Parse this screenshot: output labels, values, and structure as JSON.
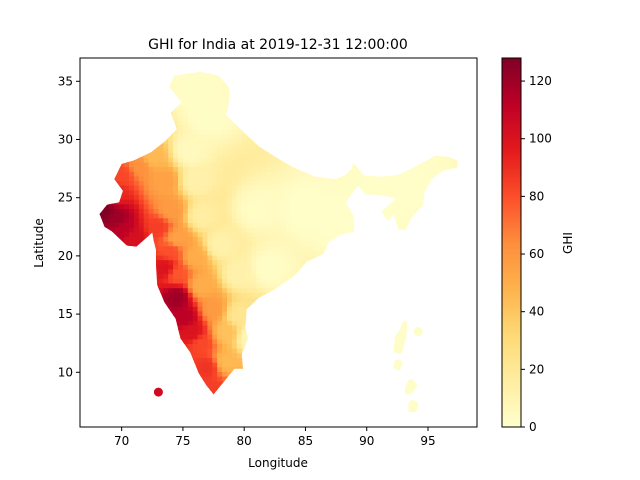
{
  "chart_data": {
    "type": "scatter",
    "title": "GHI for India at 2019-12-31 12:00:00",
    "xlabel": "Longitude",
    "ylabel": "Latitude",
    "xlim": [
      66.6,
      99.0
    ],
    "ylim": [
      5.3,
      37.0
    ],
    "x_ticks": [
      70,
      75,
      80,
      85,
      90,
      95
    ],
    "y_ticks": [
      10,
      15,
      20,
      25,
      30,
      35
    ],
    "grid": false,
    "colormap": "YlOrRd",
    "colorbar": {
      "label": "GHI",
      "range": [
        0,
        128
      ],
      "ticks": [
        0,
        20,
        40,
        60,
        80,
        100,
        120
      ]
    },
    "colormap_stops": [
      "#ffffcc",
      "#ffeda0",
      "#fed976",
      "#feb24c",
      "#fd8d3c",
      "#fc4e2a",
      "#e31a1c",
      "#bd0026",
      "#800026"
    ],
    "regions": [
      {
        "name": "mainland",
        "polygon": [
          [
            68.2,
            23.6
          ],
          [
            68.8,
            24.4
          ],
          [
            69.8,
            24.6
          ],
          [
            70.1,
            25.6
          ],
          [
            69.4,
            26.6
          ],
          [
            70.0,
            27.9
          ],
          [
            71.0,
            28.2
          ],
          [
            72.4,
            28.9
          ],
          [
            73.6,
            29.9
          ],
          [
            74.5,
            30.9
          ],
          [
            74.0,
            32.3
          ],
          [
            74.9,
            33.2
          ],
          [
            73.9,
            34.5
          ],
          [
            74.3,
            35.5
          ],
          [
            76.4,
            35.8
          ],
          [
            77.9,
            35.5
          ],
          [
            78.8,
            34.4
          ],
          [
            78.7,
            32.8
          ],
          [
            78.5,
            32.1
          ],
          [
            79.2,
            31.4
          ],
          [
            80.2,
            30.4
          ],
          [
            81.2,
            29.4
          ],
          [
            82.7,
            28.4
          ],
          [
            84.0,
            27.6
          ],
          [
            85.8,
            26.8
          ],
          [
            87.4,
            26.6
          ],
          [
            88.2,
            26.9
          ],
          [
            88.8,
            27.5
          ],
          [
            88.9,
            28.0
          ],
          [
            89.8,
            26.9
          ],
          [
            91.3,
            26.8
          ],
          [
            92.7,
            27.0
          ],
          [
            94.2,
            27.8
          ],
          [
            95.6,
            28.6
          ],
          [
            96.6,
            28.5
          ],
          [
            97.4,
            28.2
          ],
          [
            97.4,
            27.6
          ],
          [
            96.2,
            27.3
          ],
          [
            95.3,
            26.6
          ],
          [
            94.7,
            25.4
          ],
          [
            94.6,
            24.4
          ],
          [
            93.6,
            23.2
          ],
          [
            93.2,
            22.3
          ],
          [
            92.6,
            22.2
          ],
          [
            92.2,
            23.6
          ],
          [
            91.7,
            23.0
          ],
          [
            91.2,
            23.8
          ],
          [
            91.8,
            24.4
          ],
          [
            92.4,
            24.9
          ],
          [
            91.2,
            25.2
          ],
          [
            89.9,
            25.3
          ],
          [
            89.3,
            26.0
          ],
          [
            88.9,
            25.5
          ],
          [
            88.3,
            24.6
          ],
          [
            88.9,
            23.5
          ],
          [
            89.0,
            22.1
          ],
          [
            87.9,
            21.8
          ],
          [
            86.9,
            21.2
          ],
          [
            86.5,
            20.2
          ],
          [
            85.1,
            19.5
          ],
          [
            84.1,
            18.3
          ],
          [
            82.3,
            17.0
          ],
          [
            81.2,
            16.4
          ],
          [
            80.2,
            15.4
          ],
          [
            80.1,
            13.8
          ],
          [
            80.3,
            12.9
          ],
          [
            79.8,
            11.5
          ],
          [
            79.9,
            10.3
          ],
          [
            79.2,
            10.3
          ],
          [
            78.2,
            9.0
          ],
          [
            77.5,
            8.1
          ],
          [
            76.9,
            8.9
          ],
          [
            76.3,
            9.9
          ],
          [
            75.6,
            11.7
          ],
          [
            74.8,
            12.9
          ],
          [
            74.4,
            14.6
          ],
          [
            73.5,
            16.0
          ],
          [
            72.9,
            17.5
          ],
          [
            72.8,
            19.2
          ],
          [
            72.8,
            20.5
          ],
          [
            72.6,
            21.4
          ],
          [
            72.5,
            22.0
          ],
          [
            71.2,
            20.8
          ],
          [
            70.4,
            20.9
          ],
          [
            69.2,
            22.1
          ],
          [
            68.6,
            22.5
          ]
        ]
      },
      {
        "name": "andaman-1",
        "polygon": [
          [
            92.9,
            13.6
          ],
          [
            93.1,
            14.2
          ],
          [
            93.0,
            12.9
          ],
          [
            92.7,
            11.8
          ],
          [
            92.4,
            11.9
          ],
          [
            92.5,
            13.0
          ]
        ]
      },
      {
        "name": "andaman-2",
        "polygon": [
          [
            92.5,
            10.9
          ],
          [
            92.7,
            10.8
          ],
          [
            92.6,
            10.4
          ],
          [
            92.4,
            10.5
          ]
        ]
      },
      {
        "name": "nicobar-1",
        "polygon": [
          [
            93.6,
            9.2
          ],
          [
            93.9,
            8.9
          ],
          [
            93.6,
            8.4
          ],
          [
            93.3,
            8.3
          ],
          [
            93.4,
            8.9
          ]
        ]
      },
      {
        "name": "nicobar-2",
        "polygon": [
          [
            93.7,
            7.4
          ],
          [
            94.0,
            7.3
          ],
          [
            93.9,
            6.8
          ],
          [
            93.6,
            6.8
          ],
          [
            93.6,
            7.2
          ]
        ]
      }
    ],
    "points": [
      {
        "x": 73.0,
        "y": 8.3,
        "v": 105
      },
      {
        "x": 94.2,
        "y": 13.5,
        "v": 2
      }
    ],
    "ghi_field": {
      "description": "GHI values at (lon, lat) anchor points inside the mainland",
      "anchors": [
        [
          68.6,
          23.8,
          128
        ],
        [
          69.5,
          23.2,
          120
        ],
        [
          70.0,
          22.3,
          112
        ],
        [
          71.0,
          21.5,
          102
        ],
        [
          69.5,
          25.5,
          92
        ],
        [
          70.0,
          27.0,
          82
        ],
        [
          71.5,
          27.8,
          62
        ],
        [
          72.5,
          28.5,
          45
        ],
        [
          73.5,
          26.5,
          55
        ],
        [
          74.0,
          24.0,
          58
        ],
        [
          73.0,
          22.5,
          85
        ],
        [
          74.5,
          21.5,
          55
        ],
        [
          73.6,
          19.0,
          100
        ],
        [
          74.5,
          18.5,
          78
        ],
        [
          74.5,
          16.5,
          120
        ],
        [
          75.2,
          14.8,
          112
        ],
        [
          75.8,
          13.5,
          100
        ],
        [
          76.5,
          12.5,
          82
        ],
        [
          77.0,
          10.5,
          88
        ],
        [
          77.5,
          8.5,
          85
        ],
        [
          78.5,
          11.0,
          45
        ],
        [
          78.5,
          13.5,
          42
        ],
        [
          77.5,
          15.5,
          58
        ],
        [
          76.5,
          17.5,
          50
        ],
        [
          79.5,
          15.0,
          22
        ],
        [
          79.5,
          18.5,
          12
        ],
        [
          78.0,
          21.0,
          12
        ],
        [
          76.5,
          23.5,
          15
        ],
        [
          76.0,
          26.5,
          12
        ],
        [
          75.5,
          29.0,
          5
        ],
        [
          77.0,
          32.0,
          2
        ],
        [
          76.0,
          34.5,
          2
        ],
        [
          81.0,
          24.0,
          3
        ],
        [
          85.0,
          24.0,
          1
        ],
        [
          88.0,
          23.0,
          1
        ],
        [
          92.0,
          26.0,
          1
        ],
        [
          82.0,
          19.0,
          2
        ],
        [
          80.5,
          13.0,
          8
        ],
        [
          76.0,
          20.0,
          50
        ],
        [
          74.0,
          20.5,
          80
        ]
      ]
    }
  }
}
